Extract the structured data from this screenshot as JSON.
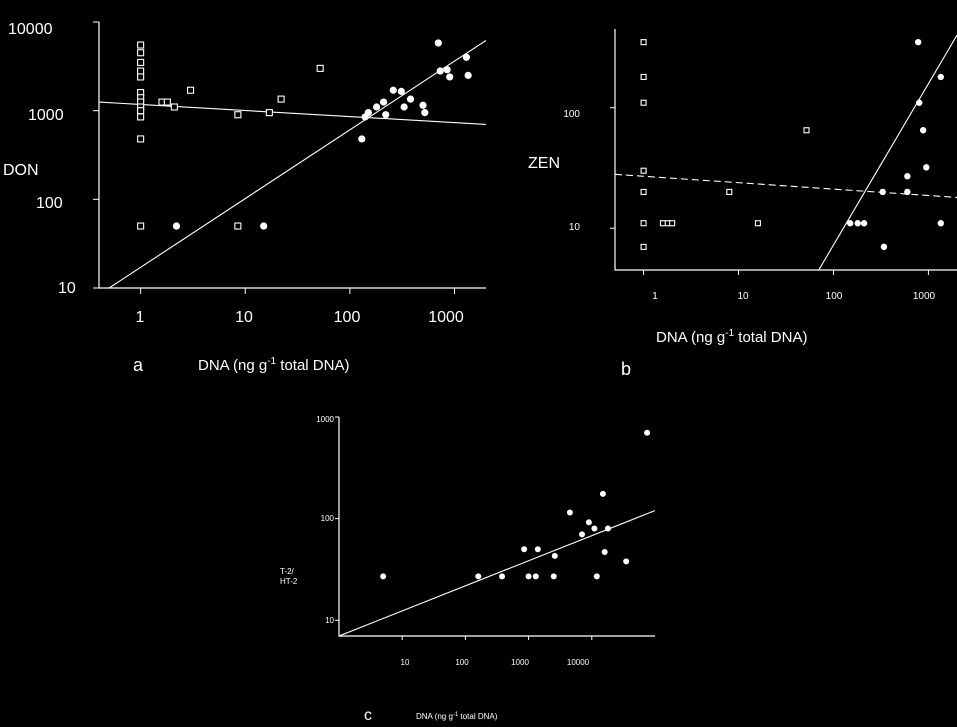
{
  "chart_data": [
    {
      "panel": "a",
      "type": "scatter",
      "xlabel": "DNA (ng g-1 total DNA)",
      "ylabel": "DON",
      "x_scale": "log",
      "y_scale": "log",
      "xlim": [
        0.4,
        2000
      ],
      "ylim": [
        10,
        10000
      ],
      "xticks": [
        "1",
        "10",
        "100",
        "1000"
      ],
      "yticks": [
        "10",
        "100",
        "1000",
        "10000"
      ],
      "series": [
        {
          "marker": "open-square",
          "points": [
            [
              1,
              5500
            ],
            [
              1,
              4500
            ],
            [
              1,
              3500
            ],
            [
              1,
              2800
            ],
            [
              1,
              2400
            ],
            [
              1,
              1600
            ],
            [
              1,
              1400
            ],
            [
              1,
              1250
            ],
            [
              1,
              1100
            ],
            [
              1,
              1000
            ],
            [
              1,
              850
            ],
            [
              1,
              480
            ],
            [
              1,
              50
            ],
            [
              1.6,
              1250
            ],
            [
              1.8,
              1250
            ],
            [
              2.1,
              1100
            ],
            [
              3,
              1700
            ],
            [
              8.5,
              900
            ],
            [
              8.5,
              50
            ],
            [
              17,
              950
            ],
            [
              22,
              1350
            ],
            [
              52,
              3000
            ]
          ],
          "fit": [
            [
              0.4,
              1250
            ],
            [
              2000,
              700
            ]
          ]
        },
        {
          "marker": "filled-circle",
          "points": [
            [
              2.2,
              50
            ],
            [
              15,
              50
            ],
            [
              130,
              480
            ],
            [
              140,
              850
            ],
            [
              150,
              950
            ],
            [
              180,
              1100
            ],
            [
              210,
              1250
            ],
            [
              220,
              900
            ],
            [
              260,
              1700
            ],
            [
              310,
              1650
            ],
            [
              330,
              1100
            ],
            [
              380,
              1350
            ],
            [
              500,
              1150
            ],
            [
              520,
              950
            ],
            [
              700,
              5800
            ],
            [
              730,
              2800
            ],
            [
              850,
              2900
            ],
            [
              900,
              2400
            ],
            [
              1300,
              4000
            ],
            [
              1350,
              2500
            ]
          ],
          "fit": [
            [
              0.5,
              10
            ],
            [
              2000,
              6200
            ]
          ]
        }
      ]
    },
    {
      "panel": "b",
      "type": "scatter",
      "xlabel": "DNA (ng g-1 total DNA)",
      "ylabel": "ZEN",
      "x_scale": "log",
      "y_scale": "log",
      "xlim": [
        0.5,
        2000
      ],
      "ylim": [
        4.5,
        450
      ],
      "xticks": [
        "1",
        "10",
        "100",
        "1000"
      ],
      "yticks": [
        "10",
        "100"
      ],
      "series": [
        {
          "marker": "open-square",
          "points": [
            [
              1,
              350
            ],
            [
              1,
              180
            ],
            [
              1,
              110
            ],
            [
              1,
              30
            ],
            [
              1,
              20
            ],
            [
              1,
              11
            ],
            [
              1,
              7
            ],
            [
              1.6,
              11
            ],
            [
              1.8,
              11
            ],
            [
              2,
              11
            ],
            [
              8,
              20
            ],
            [
              16,
              11
            ],
            [
              52,
              65
            ]
          ],
          "fit": [
            [
              0.5,
              28
            ],
            [
              2000,
              18
            ]
          ]
        },
        {
          "marker": "filled-circle",
          "points": [
            [
              150,
              11
            ],
            [
              180,
              11
            ],
            [
              210,
              11
            ],
            [
              330,
              20
            ],
            [
              340,
              7
            ],
            [
              600,
              20
            ],
            [
              600,
              27
            ],
            [
              780,
              350
            ],
            [
              800,
              110
            ],
            [
              880,
              65
            ],
            [
              950,
              32
            ],
            [
              1350,
              180
            ],
            [
              1350,
              11
            ]
          ],
          "fit": [
            [
              70,
              4.5
            ],
            [
              2000,
              400
            ]
          ]
        }
      ]
    },
    {
      "panel": "c",
      "type": "scatter",
      "xlabel": "DNA (ng g-1 total DNA)",
      "ylabel": "T-2/HT-2",
      "x_scale": "log",
      "y_scale": "log",
      "xlim": [
        1,
        100000
      ],
      "ylim": [
        7,
        1000
      ],
      "xticks": [
        "10",
        "100",
        "1000",
        "10000"
      ],
      "yticks": [
        "10",
        "100",
        "1000"
      ],
      "series": [
        {
          "marker": "filled-circle",
          "points": [
            [
              5,
              27
            ],
            [
              160,
              27
            ],
            [
              380,
              27
            ],
            [
              850,
              50
            ],
            [
              1000,
              27
            ],
            [
              1300,
              27
            ],
            [
              1400,
              50
            ],
            [
              2500,
              27
            ],
            [
              2600,
              43
            ],
            [
              4500,
              115
            ],
            [
              7000,
              70
            ],
            [
              9000,
              92
            ],
            [
              11000,
              80
            ],
            [
              12000,
              27
            ],
            [
              15000,
              175
            ],
            [
              16000,
              47
            ],
            [
              18000,
              80
            ],
            [
              35000,
              38
            ],
            [
              75000,
              700
            ]
          ],
          "fit": [
            [
              1,
              7
            ],
            [
              100000,
              120
            ]
          ]
        }
      ]
    }
  ]
}
